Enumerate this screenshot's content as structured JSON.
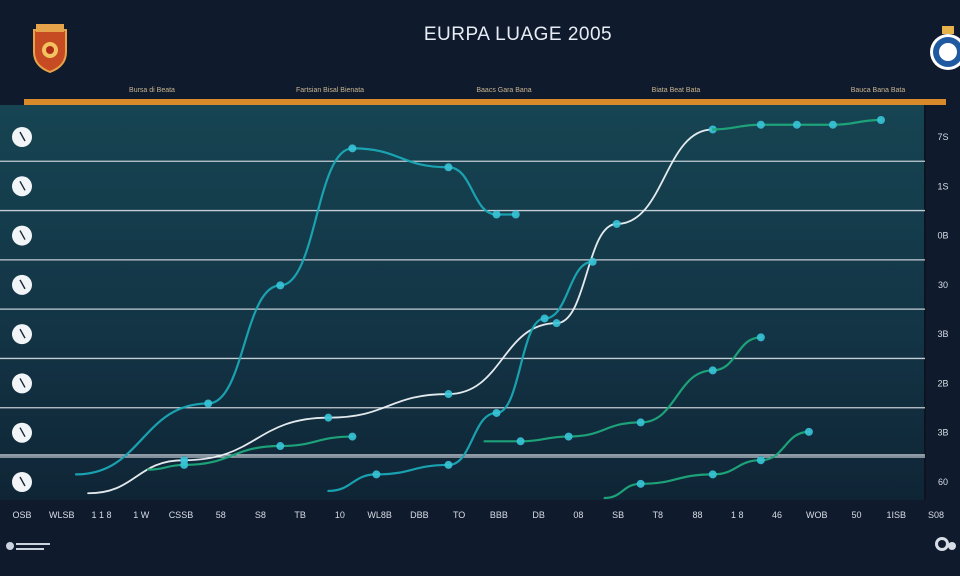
{
  "header": {
    "title": "EURPA LUAGE 2005",
    "tabs": [
      "Bursa di Beata",
      "Fartsian Bisal Bienata",
      "Baacs Gara Bana",
      "Biata Beat Bata",
      "Bauca Bana Bata"
    ]
  },
  "colors": {
    "background": "#0f1a2c",
    "plot_area": "#14394a",
    "orange_rule": "#d88a2b",
    "gridline": "#d9dee5",
    "series_teal": "#1aa8b6",
    "series_white": "#eef3f7",
    "series_green": "#1fa87c",
    "marker": "#39c4d8"
  },
  "icons": {
    "left_logo": "club-crest-icon",
    "right_logo": "club-crest-icon",
    "left_markers": "ball-icon"
  },
  "chart_data": {
    "type": "line",
    "title": "EURPA LUAGE 2005",
    "x_tick_labels": [
      "OSB",
      "WLSB",
      "1 1 8",
      "1 W",
      "CSSB",
      "58",
      "S8",
      "TB",
      "10",
      "WL8B",
      "DBB",
      "TO",
      "BBB",
      "DB",
      "08",
      "SB",
      "T8",
      "88",
      "1 8",
      "46",
      "WOB",
      "50",
      "1ISB",
      "S08"
    ],
    "y_tick_labels": [
      "7S",
      "1S",
      "0B",
      "30",
      "3B",
      "2B",
      "3B",
      "60"
    ],
    "ylim": [
      0,
      80
    ],
    "grid": true,
    "legend": "none",
    "series": [
      {
        "color": "teal",
        "x": [
          1.5,
          7,
          10,
          13,
          17,
          19,
          19.8
        ],
        "y": [
          5,
          20,
          45,
          74,
          70,
          60,
          60
        ]
      },
      {
        "color": "white",
        "x": [
          2,
          6,
          12,
          17,
          21.5,
          24,
          28
        ],
        "y": [
          1,
          8,
          17,
          22,
          37,
          58,
          78
        ]
      },
      {
        "color": "teal",
        "x": [
          12,
          14,
          17,
          19,
          21,
          23
        ],
        "y": [
          1.5,
          5,
          7,
          18,
          38,
          50
        ]
      },
      {
        "color": "green",
        "x": [
          4.5,
          6,
          10,
          13
        ],
        "y": [
          6,
          7,
          11,
          13
        ]
      },
      {
        "color": "green",
        "x": [
          18.5,
          20,
          22,
          25,
          28,
          30
        ],
        "y": [
          12,
          12,
          13,
          16,
          27,
          34
        ]
      },
      {
        "color": "green",
        "x": [
          28,
          30,
          31.5,
          33,
          35
        ],
        "y": [
          78,
          79,
          79,
          79,
          80
        ]
      },
      {
        "color": "green",
        "x": [
          23.5,
          25,
          28,
          30,
          32
        ],
        "y": [
          0,
          3,
          5,
          8,
          14
        ]
      }
    ]
  }
}
